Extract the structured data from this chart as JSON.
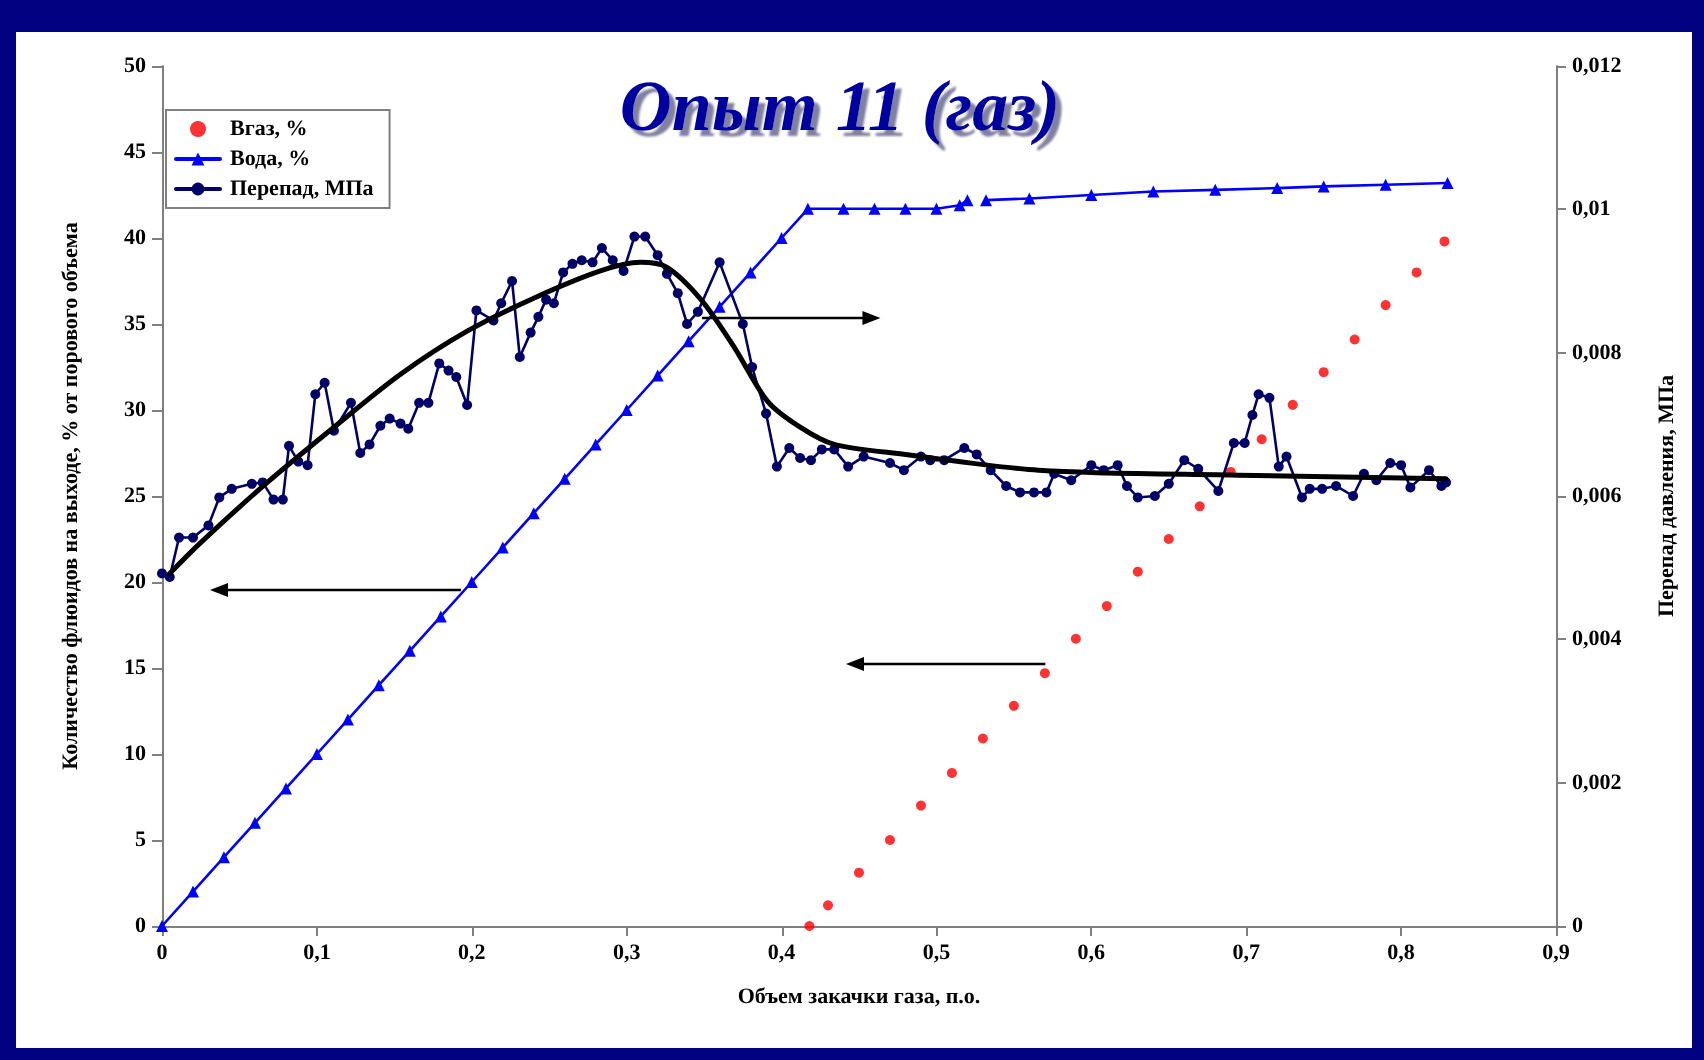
{
  "chart_data": {
    "type": "line",
    "title": "Опыт 11 (газ)",
    "xlabel": "Объем закачки газа, п.о.",
    "ylabel": "Количество флюидов на выходе, % от порового объема",
    "y2label": "Перепад давления, МПа",
    "xlim": [
      0,
      0.9
    ],
    "xticks": [
      0,
      {
        "value": 0.1,
        "label": "0,1"
      },
      {
        "value": 0.2,
        "label": "0,2"
      },
      {
        "value": 0.3,
        "label": "0,3"
      },
      {
        "value": 0.4,
        "label": "0,4"
      },
      {
        "value": 0.5,
        "label": "0,5"
      },
      {
        "value": 0.6,
        "label": "0,6"
      },
      {
        "value": 0.7,
        "label": "0,7"
      },
      {
        "value": 0.8,
        "label": "0,8"
      },
      {
        "value": 0.9,
        "label": "0,9"
      }
    ],
    "ylim": [
      0,
      50
    ],
    "yticks": [
      0,
      5,
      10,
      15,
      20,
      25,
      30,
      35,
      40,
      45,
      50
    ],
    "y2lim": [
      0,
      0.012
    ],
    "y2ticks": [
      0,
      {
        "value": 0.002,
        "label": "0,002"
      },
      {
        "value": 0.004,
        "label": "0,004"
      },
      {
        "value": 0.006,
        "label": "0,006"
      },
      {
        "value": 0.008,
        "label": "0,008"
      },
      {
        "value": 0.01,
        "label": "0,01"
      },
      {
        "value": 0.012,
        "label": "0,012"
      }
    ],
    "grid": false,
    "legend": "top left",
    "series": [
      {
        "name": "Вгаз, %",
        "type": "scatter",
        "marker": "circle",
        "color": "#ff0000",
        "x": [
          0.418,
          0.43,
          0.45,
          0.47,
          0.49,
          0.51,
          0.53,
          0.55,
          0.57,
          0.59,
          0.61,
          0.63,
          0.65,
          0.67,
          0.69,
          0.71,
          0.73,
          0.75,
          0.77,
          0.79,
          0.81,
          0.828
        ],
        "values": [
          0,
          1.2,
          3.1,
          5.0,
          7.0,
          8.9,
          10.9,
          12.8,
          14.7,
          16.7,
          18.6,
          20.6,
          22.5,
          24.4,
          26.4,
          28.3,
          30.3,
          32.2,
          34.1,
          36.1,
          38.0,
          39.8
        ]
      },
      {
        "name": "Вода, %",
        "marker": "triangle",
        "color": "#0000ff",
        "x": [
          0,
          0.02,
          0.04,
          0.06,
          0.08,
          0.1,
          0.12,
          0.14,
          0.16,
          0.18,
          0.2,
          0.22,
          0.24,
          0.26,
          0.28,
          0.3,
          0.32,
          0.34,
          0.36,
          0.38,
          0.4,
          0.417,
          0.44,
          0.46,
          0.48,
          0.5,
          0.515,
          0.52,
          0.525,
          0.532,
          0.56,
          0.6,
          0.64,
          0.68,
          0.72,
          0.75,
          0.79,
          0.83
        ],
        "values": [
          0,
          2,
          4,
          6,
          8,
          10,
          12,
          14,
          16,
          18,
          20,
          22,
          24,
          26,
          28,
          30,
          32,
          34,
          36,
          38,
          40,
          41.7,
          41.7,
          41.7,
          41.7,
          41.7,
          41.9,
          42.2,
          null,
          42.2,
          42.3,
          42.5,
          42.7,
          42.8,
          42.9,
          43.0,
          43.1,
          43.2
        ]
      },
      {
        "name": "Перепад, МПа",
        "axis": "y2",
        "marker": "circle",
        "color": "#000066",
        "x": [
          0,
          0.005,
          0.011,
          0.02,
          0.03,
          0.037,
          0.045,
          0.058,
          0.065,
          0.072,
          0.078,
          0.082,
          0.088,
          0.094,
          0.099,
          0.105,
          0.111,
          0.122,
          0.128,
          0.134,
          0.141,
          0.147,
          0.154,
          0.159,
          0.166,
          0.172,
          0.179,
          0.185,
          0.19,
          0.197,
          0.203,
          0.214,
          0.219,
          0.226,
          0.231,
          0.238,
          0.243,
          0.248,
          0.253,
          0.259,
          0.265,
          0.271,
          0.278,
          0.284,
          0.291,
          0.298,
          0.305,
          0.312,
          0.32,
          0.326,
          0.333,
          0.339,
          0.346,
          0.36,
          0.375,
          0.381,
          0.39,
          0.397,
          0.405,
          0.412,
          0.419,
          0.426,
          0.434,
          0.443,
          0.453,
          0.47,
          0.479,
          0.49,
          0.496,
          0.505,
          0.518,
          0.526,
          0.535,
          0.545,
          0.554,
          0.563,
          0.571,
          0.576,
          0.587,
          0.6,
          0.608,
          0.617,
          0.623,
          0.63,
          0.641,
          0.65,
          0.66,
          0.669,
          0.682,
          0.692,
          0.699,
          0.704,
          0.708,
          0.715,
          0.721,
          0.726,
          0.736,
          0.741,
          0.749,
          0.758,
          0.769,
          0.776,
          0.784,
          0.793,
          0.8,
          0.806,
          0.818,
          0.826,
          0.829
        ],
        "values": [
          0.00492,
          0.00487,
          0.00542,
          0.00542,
          0.00559,
          0.00598,
          0.0061,
          0.00617,
          0.00619,
          0.00595,
          0.00595,
          0.0067,
          0.00648,
          0.00643,
          0.00742,
          0.00758,
          0.00691,
          0.0073,
          0.0066,
          0.00672,
          0.00698,
          0.00708,
          0.00701,
          0.00694,
          0.0073,
          0.0073,
          0.00785,
          0.00775,
          0.00766,
          0.00727,
          0.00859,
          0.00845,
          0.00869,
          0.009,
          0.00794,
          0.00828,
          0.0085,
          0.00874,
          0.00869,
          0.00912,
          0.00924,
          0.00929,
          0.00926,
          0.00946,
          0.00929,
          0.00914,
          0.00962,
          0.00962,
          0.00936,
          0.0091,
          0.00883,
          0.0084,
          0.00857,
          0.00926,
          0.0084,
          0.0078,
          0.00715,
          0.00641,
          0.00667,
          0.00653,
          0.0065,
          0.00665,
          0.00665,
          0.00641,
          0.00655,
          0.00646,
          0.00636,
          0.00655,
          0.0065,
          0.0065,
          0.00667,
          0.00658,
          0.00636,
          0.00614,
          0.00605,
          0.00605,
          0.00605,
          0.00631,
          0.00622,
          0.00643,
          0.00636,
          0.00643,
          0.00614,
          0.00598,
          0.006,
          0.00617,
          0.0065,
          0.00638,
          0.00607,
          0.00674,
          0.00674,
          0.00713,
          0.00742,
          0.00737,
          0.00641,
          0.00655,
          0.00598,
          0.0061,
          0.0061,
          0.00614,
          0.006,
          0.00631,
          0.00622,
          0.00646,
          0.00643,
          0.00612,
          0.00636,
          0.00614,
          0.00619
        ]
      },
      {
        "axis": "y2",
        "marker": "none",
        "color": "#000000",
        "x": [
          0.005,
          0.025,
          0.068,
          0.111,
          0.154,
          0.197,
          0.24,
          0.283,
          0.309,
          0.326,
          0.348,
          0.369,
          0.391,
          0.412,
          0.434,
          0.48,
          0.566,
          0.695,
          0.829
        ],
        "values": [
          0.00492,
          0.00535,
          0.00619,
          0.00696,
          0.0077,
          0.0083,
          0.00876,
          0.00914,
          0.00926,
          0.00919,
          0.00874,
          0.00809,
          0.00732,
          0.00696,
          0.00672,
          0.00658,
          0.00636,
          0.00629,
          0.00624
        ]
      }
    ]
  }
}
